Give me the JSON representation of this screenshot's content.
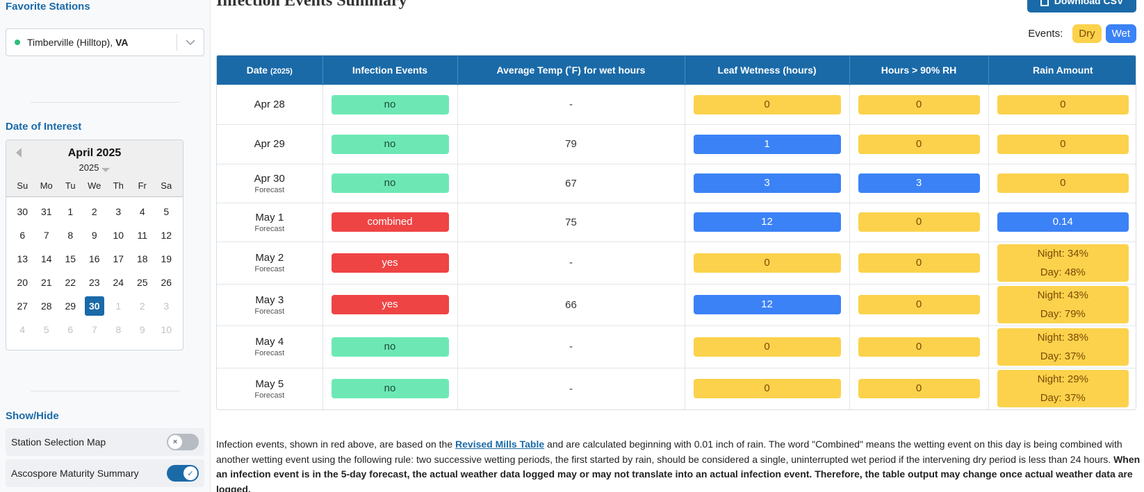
{
  "sidebar": {
    "favorite_title": "Favorite Stations",
    "station": {
      "name": "Timberville (Hilltop), ",
      "state": "VA"
    },
    "date_title": "Date of Interest",
    "calendar": {
      "month_label": "April 2025",
      "year_label": "2025",
      "dow": [
        "Su",
        "Mo",
        "Tu",
        "We",
        "Th",
        "Fr",
        "Sa"
      ],
      "days": [
        {
          "d": "30",
          "out": false
        },
        {
          "d": "31",
          "out": false
        },
        {
          "d": "1",
          "out": false
        },
        {
          "d": "2",
          "out": false
        },
        {
          "d": "3",
          "out": false
        },
        {
          "d": "4",
          "out": false
        },
        {
          "d": "5",
          "out": false
        },
        {
          "d": "6",
          "out": false
        },
        {
          "d": "7",
          "out": false
        },
        {
          "d": "8",
          "out": false
        },
        {
          "d": "9",
          "out": false
        },
        {
          "d": "10",
          "out": false
        },
        {
          "d": "11",
          "out": false
        },
        {
          "d": "12",
          "out": false
        },
        {
          "d": "13",
          "out": false
        },
        {
          "d": "14",
          "out": false
        },
        {
          "d": "15",
          "out": false
        },
        {
          "d": "16",
          "out": false
        },
        {
          "d": "17",
          "out": false
        },
        {
          "d": "18",
          "out": false
        },
        {
          "d": "19",
          "out": false
        },
        {
          "d": "20",
          "out": false
        },
        {
          "d": "21",
          "out": false
        },
        {
          "d": "22",
          "out": false
        },
        {
          "d": "23",
          "out": false
        },
        {
          "d": "24",
          "out": false
        },
        {
          "d": "25",
          "out": false
        },
        {
          "d": "26",
          "out": false
        },
        {
          "d": "27",
          "out": false
        },
        {
          "d": "28",
          "out": false
        },
        {
          "d": "29",
          "out": false
        },
        {
          "d": "30",
          "out": false,
          "selected": true
        },
        {
          "d": "1",
          "out": true
        },
        {
          "d": "2",
          "out": true
        },
        {
          "d": "3",
          "out": true
        },
        {
          "d": "4",
          "out": true
        },
        {
          "d": "5",
          "out": true
        },
        {
          "d": "6",
          "out": true
        },
        {
          "d": "7",
          "out": true
        },
        {
          "d": "8",
          "out": true
        },
        {
          "d": "9",
          "out": true
        },
        {
          "d": "10",
          "out": true
        }
      ]
    },
    "showhide_title": "Show/Hide",
    "toggles": [
      {
        "label": "Station Selection Map",
        "on": false,
        "knob": "×"
      },
      {
        "label": "Ascospore Maturity Summary",
        "on": true,
        "knob": "✓"
      }
    ]
  },
  "main": {
    "title": "Infection Events Summary",
    "download_label": "Download CSV",
    "legend": {
      "label": "Events:",
      "dry": "Dry",
      "wet": "Wet"
    },
    "table": {
      "headers": {
        "date": "Date",
        "date_sub": "(2025)",
        "infection": "Infection Events",
        "avg_temp": "Average Temp (˚F) for wet hours",
        "leaf_wetness": "Leaf Wetness (hours)",
        "rh": "Hours > 90% RH",
        "rain": "Rain Amount"
      },
      "rows": [
        {
          "date": "Apr 28",
          "sub": "",
          "infection": "no",
          "inf_type": "no",
          "temp": "-",
          "leaf": "0",
          "leaf_type": "dry",
          "rh": "0",
          "rh_type": "dry",
          "rain": [
            "0"
          ],
          "rain_type": "dry"
        },
        {
          "date": "Apr 29",
          "sub": "",
          "infection": "no",
          "inf_type": "no",
          "temp": "79",
          "leaf": "1",
          "leaf_type": "wet",
          "rh": "0",
          "rh_type": "dry",
          "rain": [
            "0"
          ],
          "rain_type": "dry"
        },
        {
          "date": "Apr 30",
          "sub": "Forecast",
          "infection": "no",
          "inf_type": "no",
          "temp": "67",
          "leaf": "3",
          "leaf_type": "wet",
          "rh": "3",
          "rh_type": "wet",
          "rain": [
            "0"
          ],
          "rain_type": "dry"
        },
        {
          "date": "May 1",
          "sub": "Forecast",
          "infection": "combined",
          "inf_type": "yes",
          "temp": "75",
          "leaf": "12",
          "leaf_type": "wet",
          "rh": "0",
          "rh_type": "dry",
          "rain": [
            "0.14"
          ],
          "rain_type": "wet"
        },
        {
          "date": "May 2",
          "sub": "Forecast",
          "infection": "yes",
          "inf_type": "yes",
          "temp": "-",
          "leaf": "0",
          "leaf_type": "dry",
          "rh": "0",
          "rh_type": "dry",
          "rain": [
            "Night: 34%",
            "Day: 48%"
          ],
          "rain_type": "dry"
        },
        {
          "date": "May 3",
          "sub": "Forecast",
          "infection": "yes",
          "inf_type": "yes",
          "temp": "66",
          "leaf": "12",
          "leaf_type": "wet",
          "rh": "0",
          "rh_type": "dry",
          "rain": [
            "Night: 43%",
            "Day: 79%"
          ],
          "rain_type": "dry"
        },
        {
          "date": "May 4",
          "sub": "Forecast",
          "infection": "no",
          "inf_type": "no",
          "temp": "-",
          "leaf": "0",
          "leaf_type": "dry",
          "rh": "0",
          "rh_type": "dry",
          "rain": [
            "Night: 38%",
            "Day: 37%"
          ],
          "rain_type": "dry"
        },
        {
          "date": "May 5",
          "sub": "Forecast",
          "infection": "no",
          "inf_type": "no",
          "temp": "-",
          "leaf": "0",
          "leaf_type": "dry",
          "rh": "0",
          "rh_type": "dry",
          "rain": [
            "Night: 29%",
            "Day: 37%"
          ],
          "rain_type": "dry"
        }
      ]
    },
    "footnote": {
      "part1": "Infection events, shown in red above, are based on the ",
      "link": "Revised Mills Table",
      "part2": " and are calculated beginning with 0.01 inch of rain. The word \"Combined\" means the wetting event on this day is being combined with another wetting event using the following rule: two successive wetting periods, the first started by rain, should be considered a single, uninterrupted wet period if the intervening dry period is less than 24 hours. ",
      "bold": "When an infection event is in the 5-day forecast, the actual weather data logged may or may not translate into an actual infection event. Therefore, the table output may change once actual weather data are logged."
    }
  }
}
